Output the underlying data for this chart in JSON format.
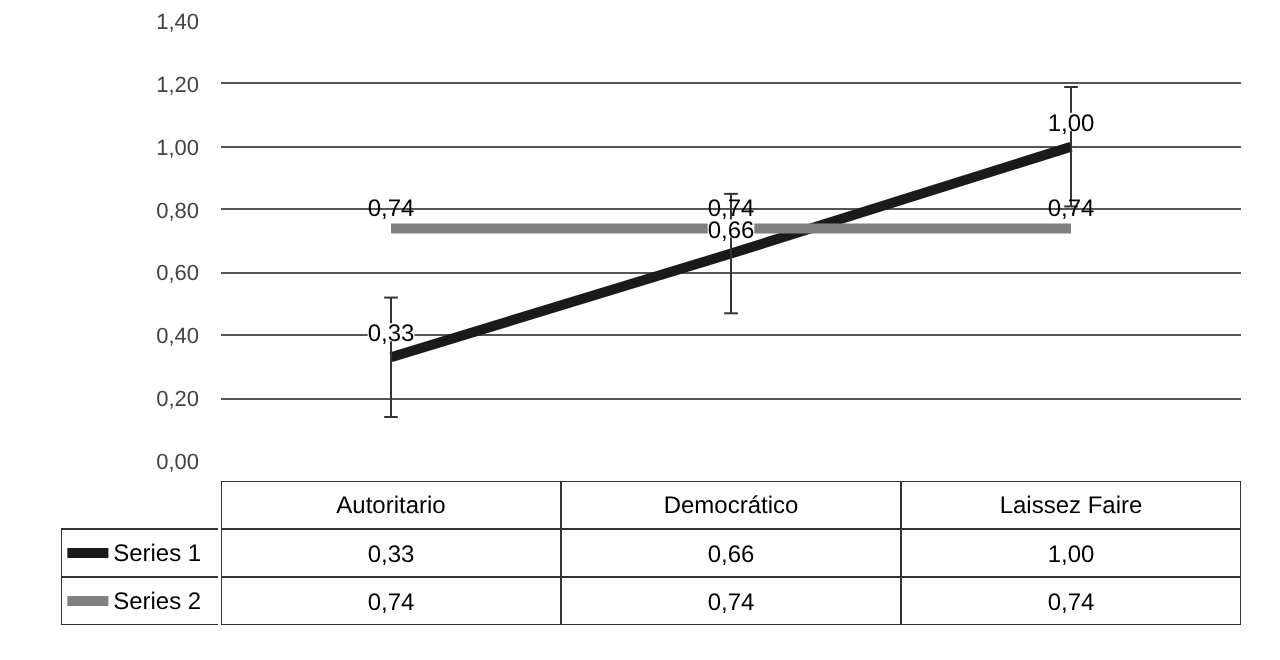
{
  "chart_data": {
    "type": "line",
    "categories": [
      "Autoritario",
      "Democrático",
      "Laissez Faire"
    ],
    "series": [
      {
        "name": "Series 1",
        "color": "#1a1a1a",
        "values": [
          0.33,
          0.66,
          1.0
        ],
        "errors": [
          0.19,
          0.19,
          0.19
        ],
        "value_labels": [
          "0,33",
          "0,66",
          "1,00"
        ]
      },
      {
        "name": "Series 2",
        "color": "#808080",
        "values": [
          0.74,
          0.74,
          0.74
        ],
        "value_labels": [
          "0,74",
          "0,74",
          "0,74"
        ]
      }
    ],
    "ylim": [
      0,
      1.4
    ],
    "yticks": [
      {
        "value": 0,
        "label": "0,00"
      },
      {
        "value": 0.2,
        "label": "0,20"
      },
      {
        "value": 0.4,
        "label": "0,40"
      },
      {
        "value": 0.6,
        "label": "0,60"
      },
      {
        "value": 0.8,
        "label": "0,80"
      },
      {
        "value": 1.0,
        "label": "1,00"
      },
      {
        "value": 1.2,
        "label": "1,20"
      },
      {
        "value": 1.4,
        "label": "1,40"
      }
    ],
    "grid": "y",
    "marker": "none",
    "line_style": "solid",
    "legend": "bottom"
  }
}
